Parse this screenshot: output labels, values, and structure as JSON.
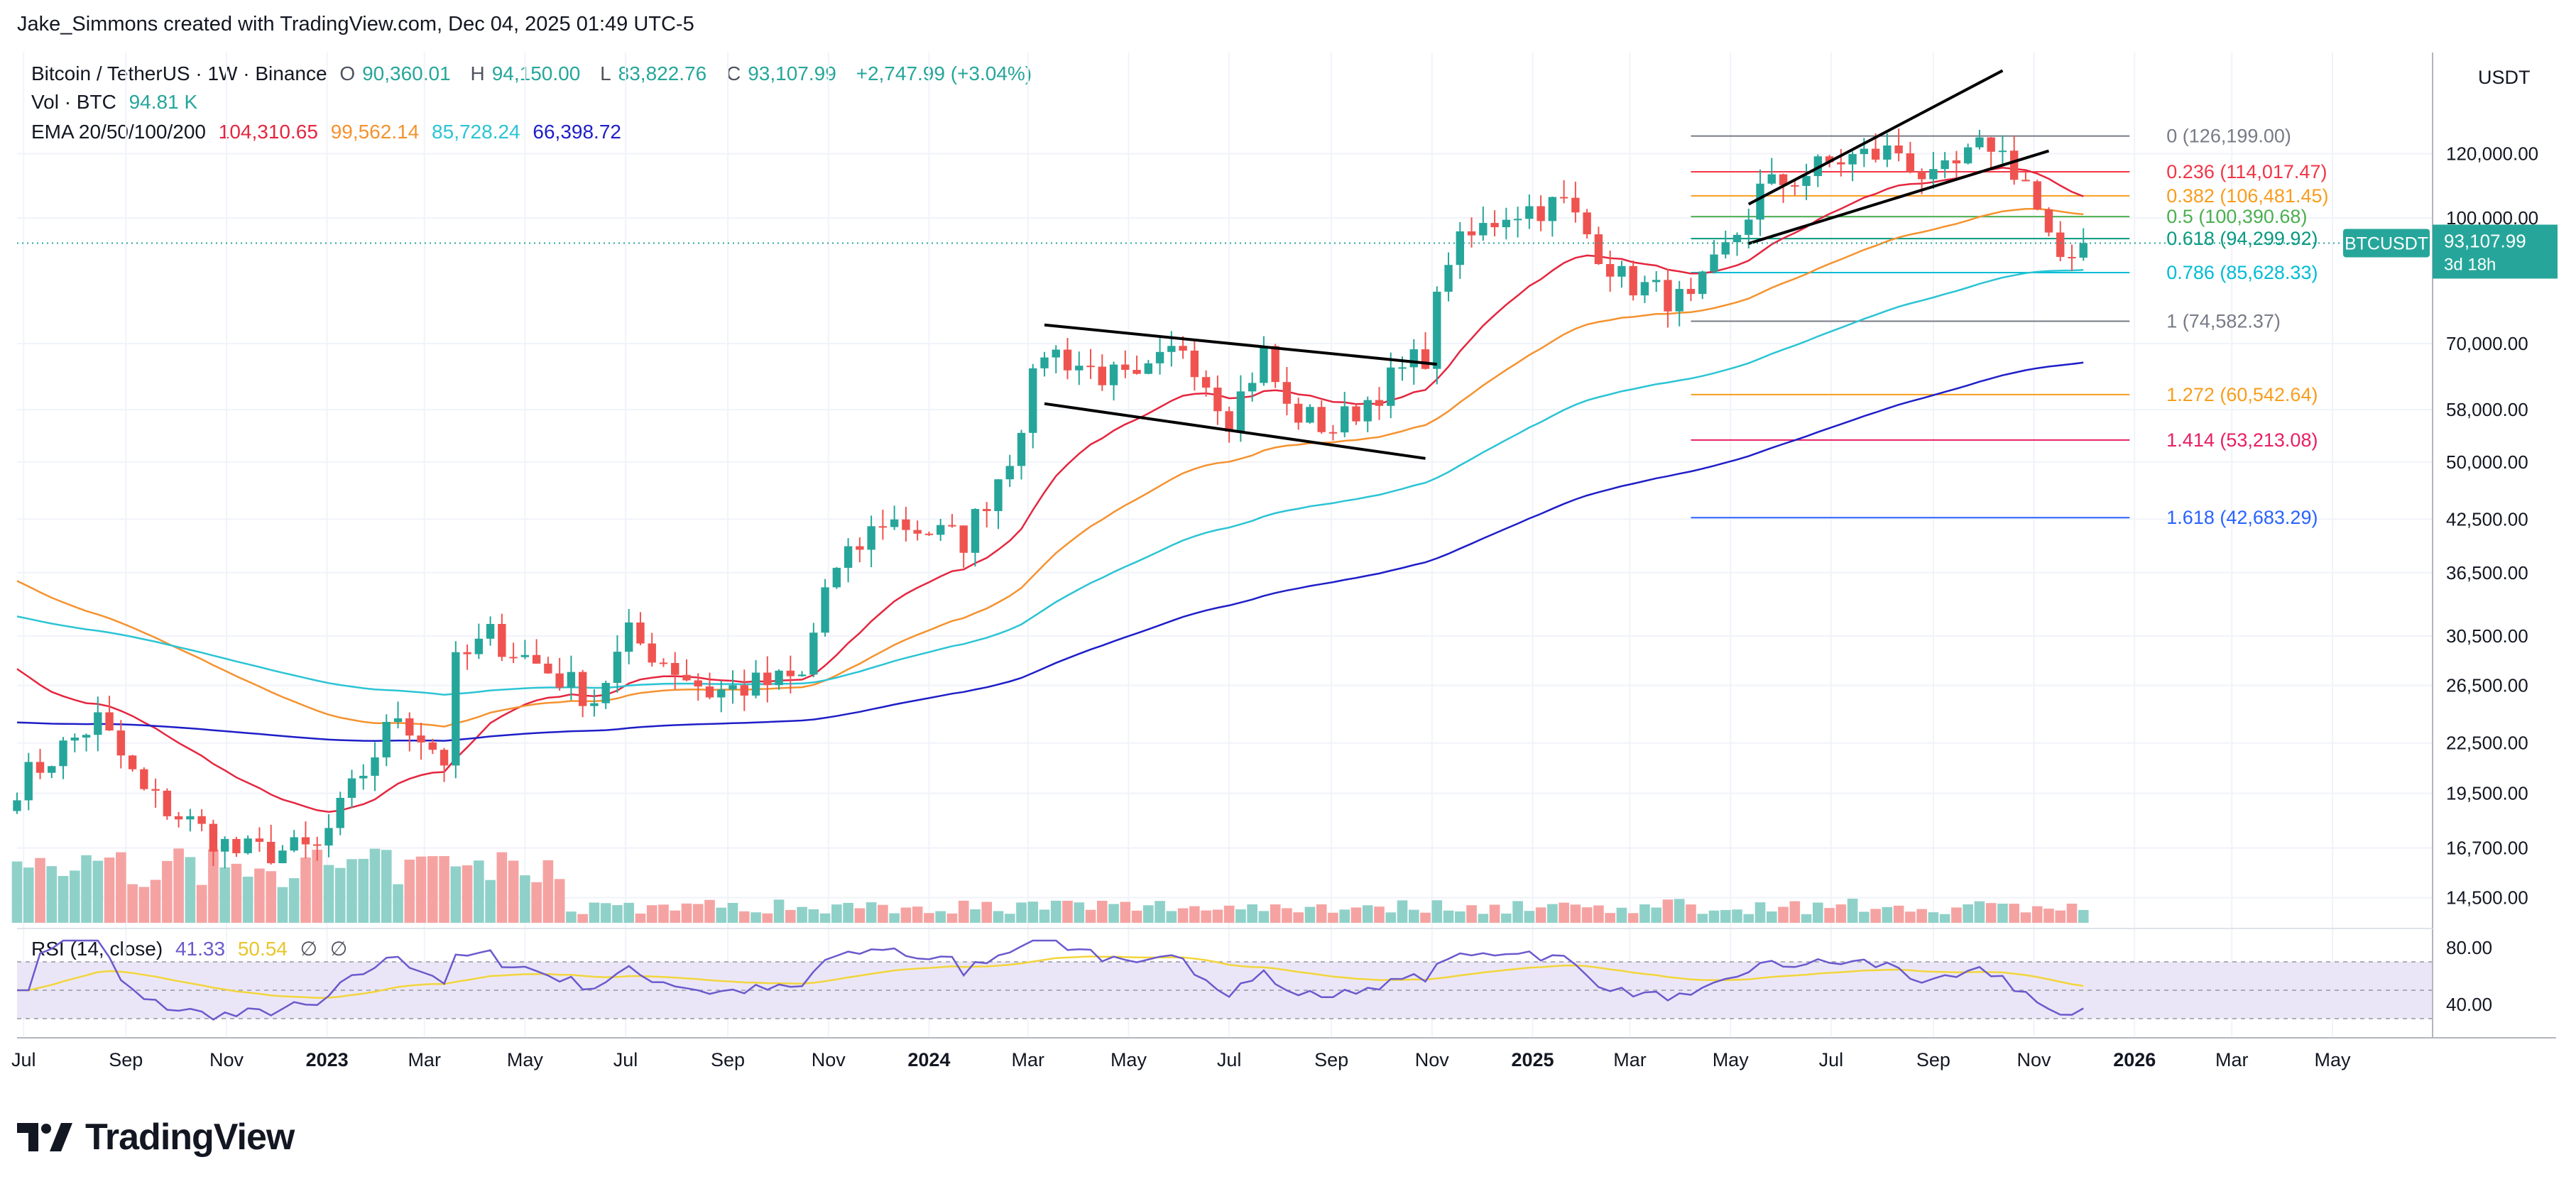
{
  "attribution": "Jake_Simmons created with TradingView.com, Dec 04, 2025 01:49 UTC-5",
  "legend": {
    "symbol": "Bitcoin / TetherUS · 1W · Binance",
    "ohlc": [
      {
        "key": "O",
        "value": "90,360.01"
      },
      {
        "key": "H",
        "value": "94,150.00"
      },
      {
        "key": "L",
        "value": "83,822.76"
      },
      {
        "key": "C",
        "value": "93,107.99"
      }
    ],
    "change": "+2,747.99 (+3.04%)",
    "volume_label": "Vol · BTC",
    "volume_value": "94.81 K",
    "ema_label": "EMA 20/50/100/200",
    "ema_values": [
      {
        "value": "104,310.65",
        "color": "#e5263f"
      },
      {
        "value": "99,562.14",
        "color": "#f5922f"
      },
      {
        "value": "85,728.24",
        "color": "#2bc4d4"
      },
      {
        "value": "66,398.72",
        "color": "#1e1ec8"
      }
    ]
  },
  "rsi_legend": {
    "label": "RSI (14, close)",
    "value": "41.33",
    "ma_value": "50.54",
    "extra": [
      "∅",
      "∅"
    ]
  },
  "logo_text": "TradingView",
  "colors": {
    "up": "#26a69a",
    "down": "#ef5350",
    "vol_up": "#8fd1c9",
    "vol_down": "#f5a3a2",
    "ema20": "#e5263f",
    "ema50": "#f5922f",
    "ema100": "#2bc4d4",
    "ema200": "#1e1ec8",
    "rsi": "#6a5acd",
    "rsi_ma": "#f2d53c",
    "rsi_band": "#ebe6f7"
  },
  "chart_data": {
    "type": "candlestick",
    "symbol": "BTCUSDT",
    "interval": "1W",
    "y_scale": "log",
    "ylim": [
      13500,
      160000
    ],
    "currency": "USDT",
    "last_price": "93,107.99",
    "last_price_value": 93107.99,
    "countdown": "3d 18h",
    "price_ticks": [
      {
        "label": "120,000.00",
        "value": 120000
      },
      {
        "label": "100,000.00",
        "value": 100000
      },
      {
        "label": "70,000.00",
        "value": 70000
      },
      {
        "label": "58,000.00",
        "value": 58000
      },
      {
        "label": "50,000.00",
        "value": 50000
      },
      {
        "label": "42,500.00",
        "value": 42500
      },
      {
        "label": "36,500.00",
        "value": 36500
      },
      {
        "label": "30,500.00",
        "value": 30500
      },
      {
        "label": "26,500.00",
        "value": 26500
      },
      {
        "label": "22,500.00",
        "value": 22500
      },
      {
        "label": "19,500.00",
        "value": 19500
      },
      {
        "label": "16,700.00",
        "value": 16700
      },
      {
        "label": "14,500.00",
        "value": 14500
      }
    ],
    "time_ticks": [
      {
        "label": "Jul",
        "date": "2022-07-01",
        "bold": false
      },
      {
        "label": "Sep",
        "date": "2022-09-01",
        "bold": false
      },
      {
        "label": "Nov",
        "date": "2022-11-01",
        "bold": false
      },
      {
        "label": "2023",
        "date": "2023-01-01",
        "bold": true
      },
      {
        "label": "Mar",
        "date": "2023-03-01",
        "bold": false
      },
      {
        "label": "May",
        "date": "2023-05-01",
        "bold": false
      },
      {
        "label": "Jul",
        "date": "2023-07-01",
        "bold": false
      },
      {
        "label": "Sep",
        "date": "2023-09-01",
        "bold": false
      },
      {
        "label": "Nov",
        "date": "2023-11-01",
        "bold": false
      },
      {
        "label": "2024",
        "date": "2024-01-01",
        "bold": true
      },
      {
        "label": "Mar",
        "date": "2024-03-01",
        "bold": false
      },
      {
        "label": "May",
        "date": "2024-05-01",
        "bold": false
      },
      {
        "label": "Jul",
        "date": "2024-07-01",
        "bold": false
      },
      {
        "label": "Sep",
        "date": "2024-09-01",
        "bold": false
      },
      {
        "label": "Nov",
        "date": "2024-11-01",
        "bold": false
      },
      {
        "label": "2025",
        "date": "2025-01-01",
        "bold": true
      },
      {
        "label": "Mar",
        "date": "2025-03-01",
        "bold": false
      },
      {
        "label": "May",
        "date": "2025-05-01",
        "bold": false
      },
      {
        "label": "Jul",
        "date": "2025-07-01",
        "bold": false
      },
      {
        "label": "Sep",
        "date": "2025-09-01",
        "bold": false
      },
      {
        "label": "Nov",
        "date": "2025-11-01",
        "bold": false
      },
      {
        "label": "2026",
        "date": "2026-01-01",
        "bold": true
      },
      {
        "label": "Mar",
        "date": "2026-03-01",
        "bold": false
      },
      {
        "label": "May",
        "date": "2026-05-01",
        "bold": false
      }
    ],
    "x_range": [
      "2022-06-27",
      "2026-06-29"
    ],
    "price_anchors": [
      [
        "2022-06-27",
        20000
      ],
      [
        "2022-08-15",
        24000
      ],
      [
        "2022-09-12",
        19500
      ],
      [
        "2022-11-07",
        16500
      ],
      [
        "2022-12-26",
        16600
      ],
      [
        "2023-02-13",
        24500
      ],
      [
        "2023-03-13",
        21500
      ],
      [
        "2023-03-20",
        28000
      ],
      [
        "2023-04-10",
        30500
      ],
      [
        "2023-06-12",
        25500
      ],
      [
        "2023-07-03",
        30500
      ],
      [
        "2023-08-21",
        26000
      ],
      [
        "2023-10-16",
        27000
      ],
      [
        "2023-10-30",
        35000
      ],
      [
        "2023-12-04",
        42500
      ],
      [
        "2024-01-22",
        40000
      ],
      [
        "2024-02-19",
        51000
      ],
      [
        "2024-03-11",
        69000
      ],
      [
        "2024-04-08",
        65000
      ],
      [
        "2024-05-06",
        62000
      ],
      [
        "2024-06-03",
        70000
      ],
      [
        "2024-07-01",
        57000
      ],
      [
        "2024-07-22",
        68000
      ],
      [
        "2024-08-05",
        58000
      ],
      [
        "2024-09-02",
        55000
      ],
      [
        "2024-10-07",
        63000
      ],
      [
        "2024-10-28",
        68000
      ],
      [
        "2024-11-11",
        90000
      ],
      [
        "2024-12-16",
        102000
      ],
      [
        "2025-01-20",
        104000
      ],
      [
        "2025-02-24",
        84000
      ],
      [
        "2025-04-07",
        78000
      ],
      [
        "2025-05-05",
        96000
      ],
      [
        "2025-05-19",
        108000
      ],
      [
        "2025-07-07",
        118000
      ],
      [
        "2025-08-11",
        121000
      ],
      [
        "2025-09-01",
        110000
      ],
      [
        "2025-10-06",
        124000
      ],
      [
        "2025-10-27",
        111000
      ],
      [
        "2025-11-17",
        86000
      ],
      [
        "2025-12-01",
        93108
      ]
    ],
    "fib_levels": [
      {
        "ratio": "0",
        "label": "(126,199.00)",
        "value": 126199,
        "color": "#787b86"
      },
      {
        "ratio": "0.236",
        "label": "(114,017.47)",
        "value": 114017.47,
        "color": "#f23645"
      },
      {
        "ratio": "0.382",
        "label": "(106,481.45)",
        "value": 106481.45,
        "color": "#f89d1e"
      },
      {
        "ratio": "0.5",
        "label": "(100,390.68)",
        "value": 100390.68,
        "color": "#4caf50"
      },
      {
        "ratio": "0.618",
        "label": "(94,299.92)",
        "value": 94299.92,
        "color": "#089981"
      },
      {
        "ratio": "0.786",
        "label": "(85,628.33)",
        "value": 85628.33,
        "color": "#00bcd4"
      },
      {
        "ratio": "1",
        "label": "(74,582.37)",
        "value": 74582.37,
        "color": "#787b86"
      },
      {
        "ratio": "1.272",
        "label": "(60,542.64)",
        "value": 60542.64,
        "color": "#f89d1e"
      },
      {
        "ratio": "1.414",
        "label": "(53,213.08)",
        "value": 53213.08,
        "color": "#e91e63"
      },
      {
        "ratio": "1.618",
        "label": "(42,683.29)",
        "value": 42683.29,
        "color": "#2962ff"
      }
    ],
    "fib_range": [
      "2025-04-07",
      "2025-12-29"
    ],
    "trendlines": [
      {
        "from": [
          "2024-03-11",
          73800
        ],
        "to": [
          "2024-11-04",
          66000
        ]
      },
      {
        "from": [
          "2024-03-11",
          59000
        ],
        "to": [
          "2024-10-28",
          50500
        ]
      },
      {
        "from": [
          "2025-05-12",
          104000
        ],
        "to": [
          "2025-10-13",
          152000
        ]
      },
      {
        "from": [
          "2025-05-12",
          93000
        ],
        "to": [
          "2025-11-10",
          121000
        ]
      }
    ],
    "rsi_ticks": [
      {
        "label": "80.00",
        "value": 80
      },
      {
        "label": "40.00",
        "value": 40
      }
    ],
    "rsi_band": [
      70,
      30
    ]
  }
}
